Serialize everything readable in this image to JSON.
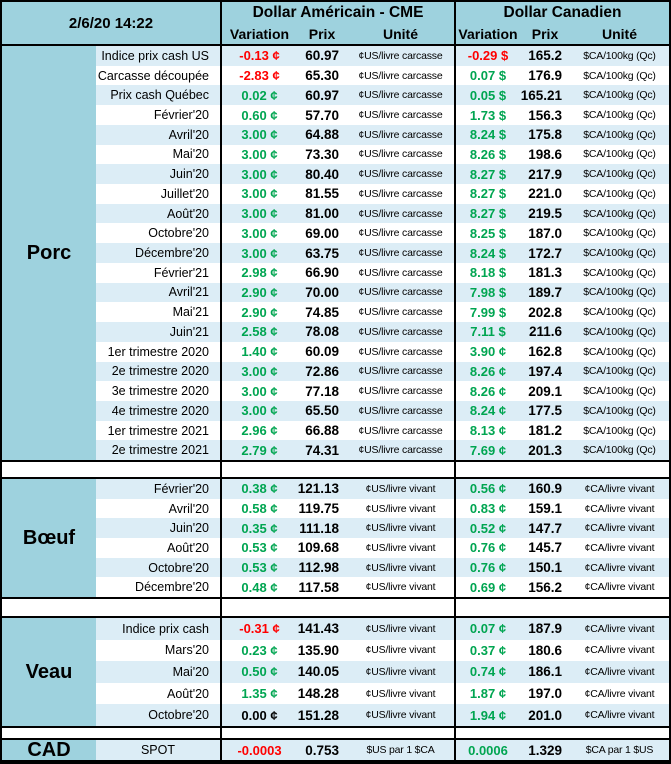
{
  "meta": {
    "datetime": "2/6/20 14:22"
  },
  "header": {
    "group_us": "Dollar Américain - CME",
    "group_ca": "Dollar Canadien",
    "col_variation": "Variation",
    "col_prix": "Prix",
    "col_unite": "Unité"
  },
  "colors": {
    "positive": "#00a551",
    "negative": "#ff0000",
    "neutral": "#000000",
    "panel_blue": "#9ed2de",
    "row_tint": "#dcedf6"
  },
  "sections": [
    {
      "id": "porc",
      "category": "Porc",
      "us_unit": "¢US/livre carcasse",
      "ca_unit": "$CA/100kg (Qc)",
      "rows": [
        {
          "label": "Indice prix cash US",
          "us_var": "-0.13 ¢",
          "us_dir": "negative",
          "us_prix": "60.97",
          "ca_var": "-0.29 $",
          "ca_dir": "negative",
          "ca_prix": "165.2"
        },
        {
          "label": "Carcasse découpée",
          "us_var": "-2.83 ¢",
          "us_dir": "negative",
          "us_prix": "65.30",
          "ca_var": "0.07 $",
          "ca_dir": "positive",
          "ca_prix": "176.9"
        },
        {
          "label": "Prix cash Québec",
          "us_var": "0.02 ¢",
          "us_dir": "positive",
          "us_prix": "60.97",
          "ca_var": "0.05 $",
          "ca_dir": "positive",
          "ca_prix": "165.21"
        },
        {
          "label": "Février'20",
          "us_var": "0.60 ¢",
          "us_dir": "positive",
          "us_prix": "57.70",
          "ca_var": "1.73 $",
          "ca_dir": "positive",
          "ca_prix": "156.3"
        },
        {
          "label": "Avril'20",
          "us_var": "3.00 ¢",
          "us_dir": "positive",
          "us_prix": "64.88",
          "ca_var": "8.24 $",
          "ca_dir": "positive",
          "ca_prix": "175.8"
        },
        {
          "label": "Mai'20",
          "us_var": "3.00 ¢",
          "us_dir": "positive",
          "us_prix": "73.30",
          "ca_var": "8.26 $",
          "ca_dir": "positive",
          "ca_prix": "198.6"
        },
        {
          "label": "Juin'20",
          "us_var": "3.00 ¢",
          "us_dir": "positive",
          "us_prix": "80.40",
          "ca_var": "8.27 $",
          "ca_dir": "positive",
          "ca_prix": "217.9"
        },
        {
          "label": "Juillet'20",
          "us_var": "3.00 ¢",
          "us_dir": "positive",
          "us_prix": "81.55",
          "ca_var": "8.27 $",
          "ca_dir": "positive",
          "ca_prix": "221.0"
        },
        {
          "label": "Août'20",
          "us_var": "3.00 ¢",
          "us_dir": "positive",
          "us_prix": "81.00",
          "ca_var": "8.27 $",
          "ca_dir": "positive",
          "ca_prix": "219.5"
        },
        {
          "label": "Octobre'20",
          "us_var": "3.00 ¢",
          "us_dir": "positive",
          "us_prix": "69.00",
          "ca_var": "8.25 $",
          "ca_dir": "positive",
          "ca_prix": "187.0"
        },
        {
          "label": "Décembre'20",
          "us_var": "3.00 ¢",
          "us_dir": "positive",
          "us_prix": "63.75",
          "ca_var": "8.24 $",
          "ca_dir": "positive",
          "ca_prix": "172.7"
        },
        {
          "label": "Février'21",
          "us_var": "2.98 ¢",
          "us_dir": "positive",
          "us_prix": "66.90",
          "ca_var": "8.18 $",
          "ca_dir": "positive",
          "ca_prix": "181.3"
        },
        {
          "label": "Avril'21",
          "us_var": "2.90 ¢",
          "us_dir": "positive",
          "us_prix": "70.00",
          "ca_var": "7.98 $",
          "ca_dir": "positive",
          "ca_prix": "189.7"
        },
        {
          "label": "Mai'21",
          "us_var": "2.90 ¢",
          "us_dir": "positive",
          "us_prix": "74.85",
          "ca_var": "7.99 $",
          "ca_dir": "positive",
          "ca_prix": "202.8"
        },
        {
          "label": "Juin'21",
          "us_var": "2.58 ¢",
          "us_dir": "positive",
          "us_prix": "78.08",
          "ca_var": "7.11 $",
          "ca_dir": "positive",
          "ca_prix": "211.6"
        },
        {
          "label": "1er trimestre 2020",
          "us_var": "1.40 ¢",
          "us_dir": "positive",
          "us_prix": "60.09",
          "ca_var": "3.90 ¢",
          "ca_dir": "positive",
          "ca_prix": "162.8"
        },
        {
          "label": "2e trimestre 2020",
          "us_var": "3.00 ¢",
          "us_dir": "positive",
          "us_prix": "72.86",
          "ca_var": "8.26 ¢",
          "ca_dir": "positive",
          "ca_prix": "197.4"
        },
        {
          "label": "3e trimestre 2020",
          "us_var": "3.00 ¢",
          "us_dir": "positive",
          "us_prix": "77.18",
          "ca_var": "8.26 ¢",
          "ca_dir": "positive",
          "ca_prix": "209.1"
        },
        {
          "label": "4e trimestre 2020",
          "us_var": "3.00 ¢",
          "us_dir": "positive",
          "us_prix": "65.50",
          "ca_var": "8.24 ¢",
          "ca_dir": "positive",
          "ca_prix": "177.5"
        },
        {
          "label": "1er trimestre 2021",
          "us_var": "2.96 ¢",
          "us_dir": "positive",
          "us_prix": "66.88",
          "ca_var": "8.13 ¢",
          "ca_dir": "positive",
          "ca_prix": "181.2"
        },
        {
          "label": "2e trimestre 2021",
          "us_var": "2.79 ¢",
          "us_dir": "positive",
          "us_prix": "74.31",
          "ca_var": "7.69 ¢",
          "ca_dir": "positive",
          "ca_prix": "201.3"
        }
      ]
    },
    {
      "id": "boeuf",
      "category": "Bœuf",
      "us_unit": "¢US/livre vivant",
      "ca_unit": "¢CA/livre vivant",
      "rows": [
        {
          "label": "Février'20",
          "us_var": "0.38 ¢",
          "us_dir": "positive",
          "us_prix": "121.13",
          "ca_var": "0.56 ¢",
          "ca_dir": "positive",
          "ca_prix": "160.9"
        },
        {
          "label": "Avril'20",
          "us_var": "0.58 ¢",
          "us_dir": "positive",
          "us_prix": "119.75",
          "ca_var": "0.83 ¢",
          "ca_dir": "positive",
          "ca_prix": "159.1"
        },
        {
          "label": "Juin'20",
          "us_var": "0.35 ¢",
          "us_dir": "positive",
          "us_prix": "111.18",
          "ca_var": "0.52 ¢",
          "ca_dir": "positive",
          "ca_prix": "147.7"
        },
        {
          "label": "Août'20",
          "us_var": "0.53 ¢",
          "us_dir": "positive",
          "us_prix": "109.68",
          "ca_var": "0.76 ¢",
          "ca_dir": "positive",
          "ca_prix": "145.7"
        },
        {
          "label": "Octobre'20",
          "us_var": "0.53 ¢",
          "us_dir": "positive",
          "us_prix": "112.98",
          "ca_var": "0.76 ¢",
          "ca_dir": "positive",
          "ca_prix": "150.1"
        },
        {
          "label": "Décembre'20",
          "us_var": "0.48 ¢",
          "us_dir": "positive",
          "us_prix": "117.58",
          "ca_var": "0.69 ¢",
          "ca_dir": "positive",
          "ca_prix": "156.2"
        }
      ]
    },
    {
      "id": "veau",
      "category": "Veau",
      "us_unit": "¢US/livre vivant",
      "ca_unit": "¢CA/livre vivant",
      "rows": [
        {
          "label": "Indice prix cash",
          "us_var": "-0.31 ¢",
          "us_dir": "negative",
          "us_prix": "141.43",
          "ca_var": "0.07 ¢",
          "ca_dir": "positive",
          "ca_prix": "187.9"
        },
        {
          "label": "Mars'20",
          "us_var": "0.23 ¢",
          "us_dir": "positive",
          "us_prix": "135.90",
          "ca_var": "0.37 ¢",
          "ca_dir": "positive",
          "ca_prix": "180.6"
        },
        {
          "label": "Mai'20",
          "us_var": "0.50 ¢",
          "us_dir": "positive",
          "us_prix": "140.05",
          "ca_var": "0.74 ¢",
          "ca_dir": "positive",
          "ca_prix": "186.1"
        },
        {
          "label": "Août'20",
          "us_var": "1.35 ¢",
          "us_dir": "positive",
          "us_prix": "148.28",
          "ca_var": "1.87 ¢",
          "ca_dir": "positive",
          "ca_prix": "197.0"
        },
        {
          "label": "Octobre'20",
          "us_var": "0.00 ¢",
          "us_dir": "neutral",
          "us_prix": "151.28",
          "ca_var": "1.94 ¢",
          "ca_dir": "positive",
          "ca_prix": "201.0"
        }
      ]
    },
    {
      "id": "cad",
      "category": "CAD",
      "us_unit": "$US par 1 $CA",
      "ca_unit": "$CA par 1 $US",
      "rows": [
        {
          "label": "SPOT",
          "us_var": "-0.0003",
          "us_dir": "negative",
          "us_prix": "0.753",
          "ca_var": "0.0006",
          "ca_dir": "positive",
          "ca_prix": "1.329"
        }
      ]
    }
  ]
}
